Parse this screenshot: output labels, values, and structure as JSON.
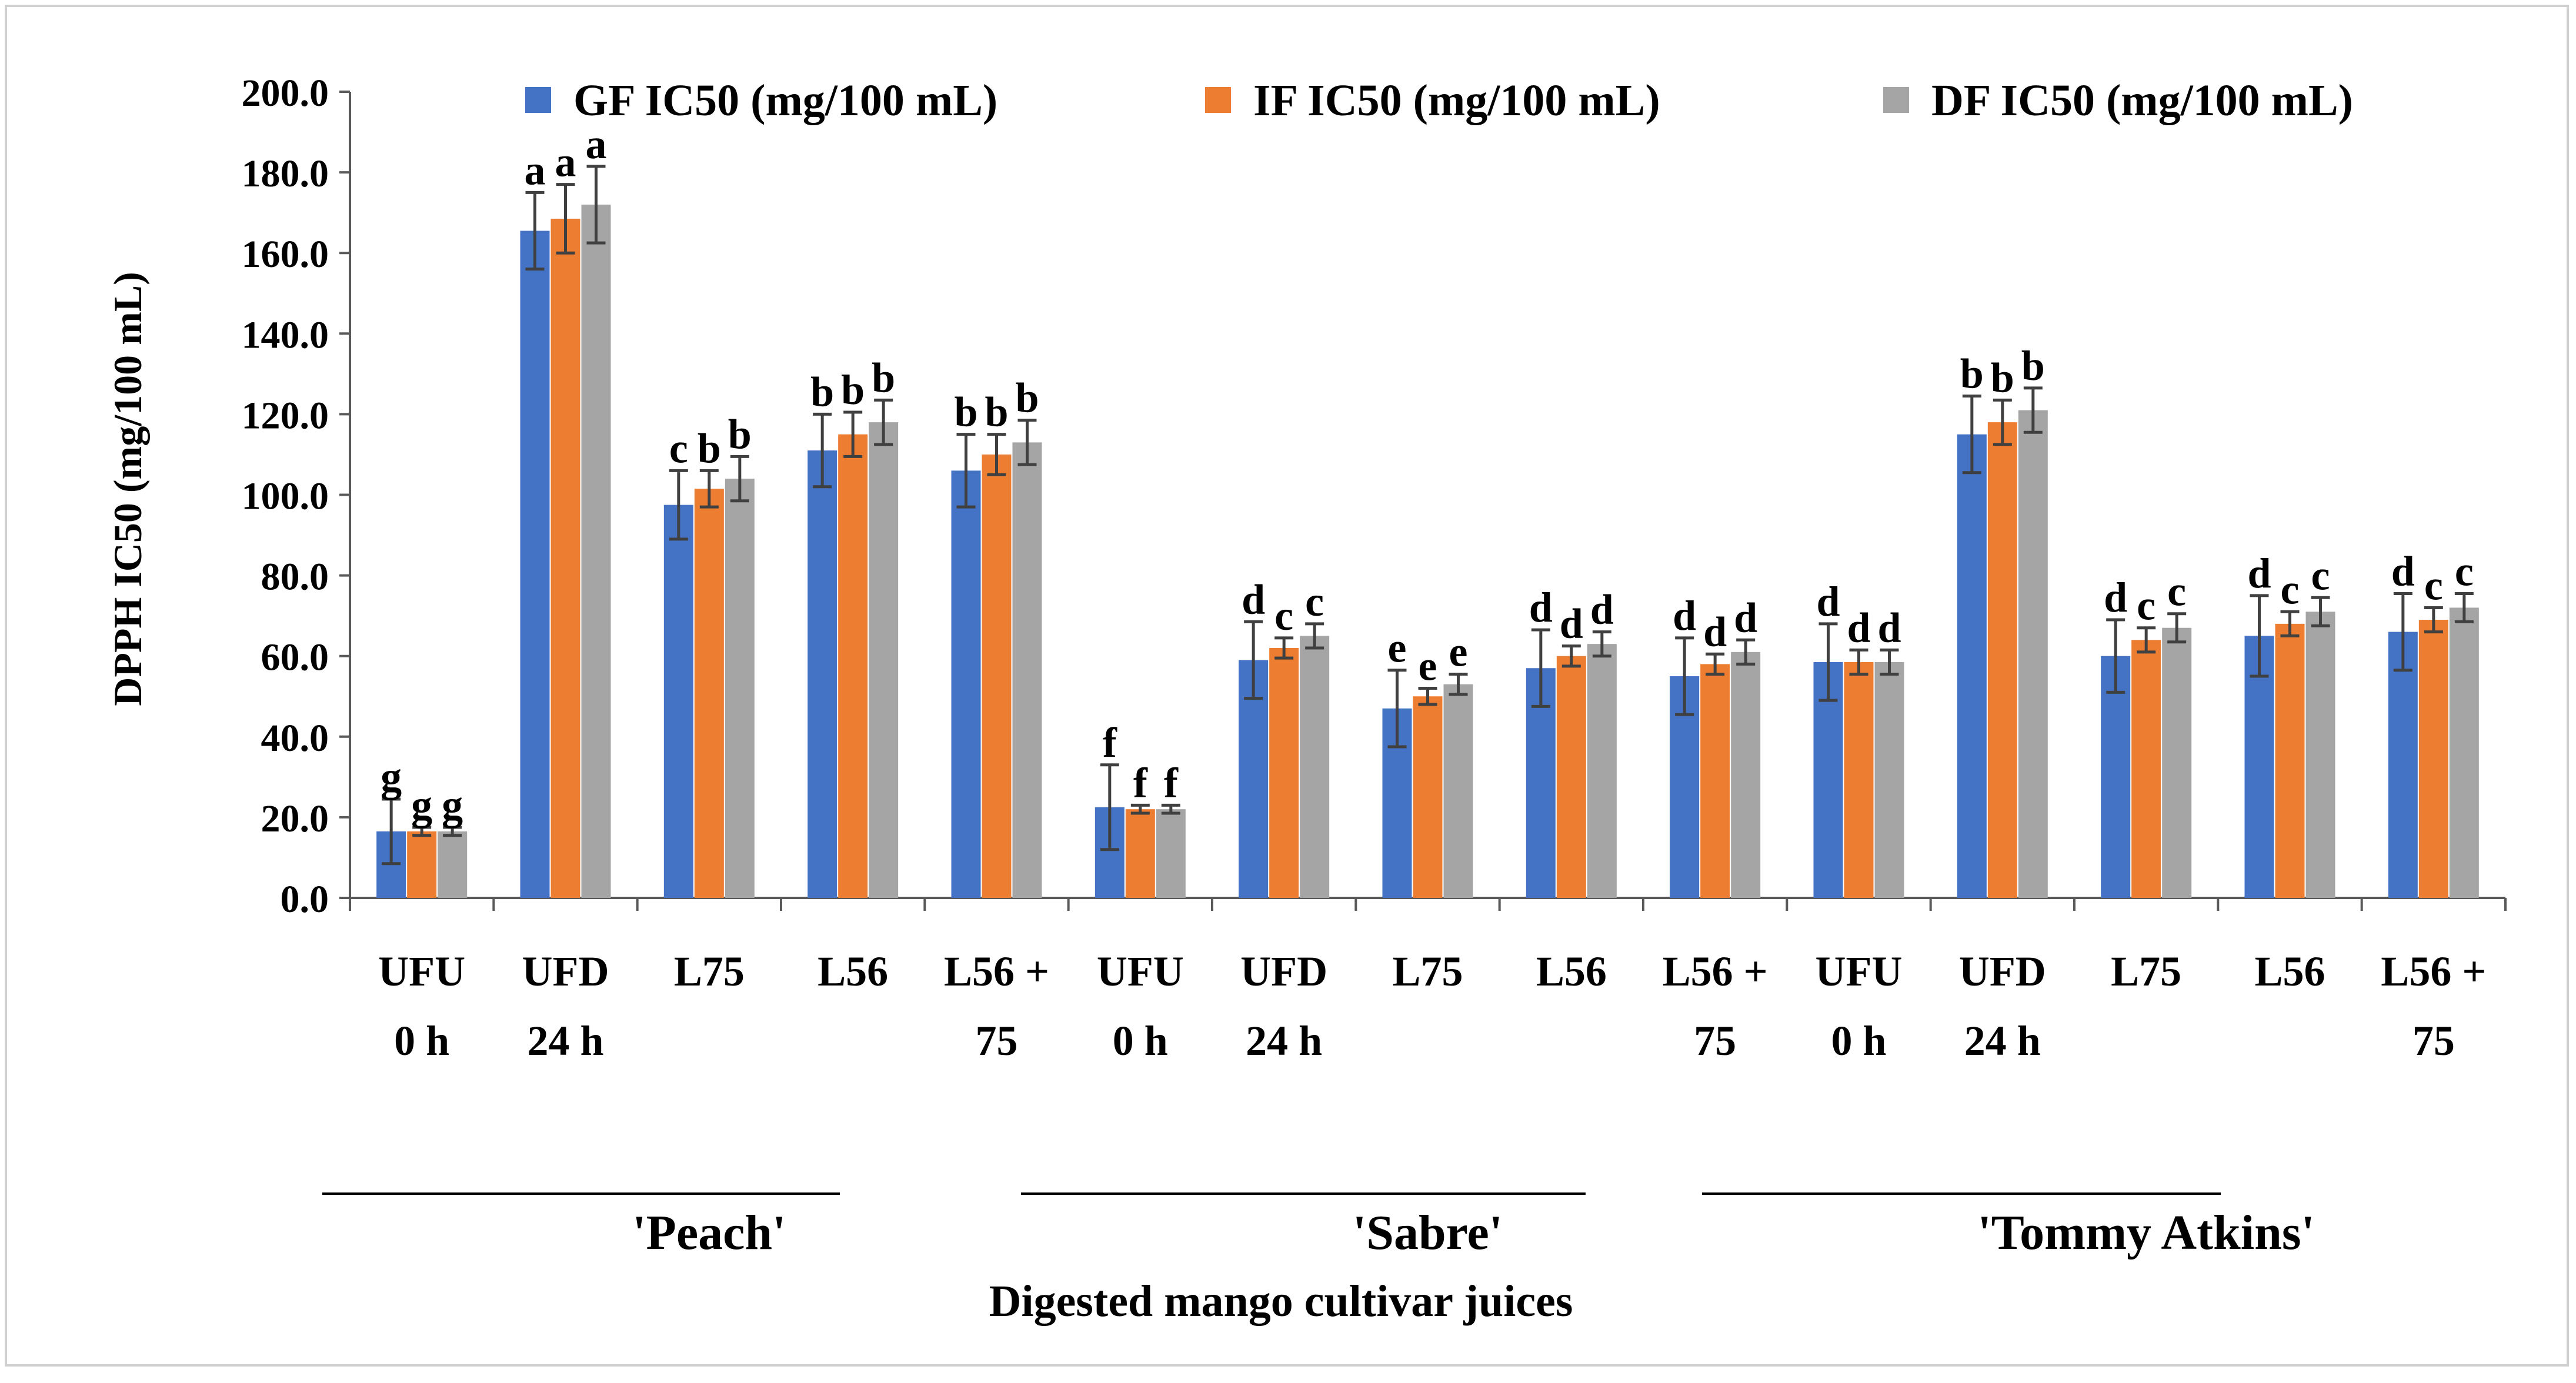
{
  "chart_data": {
    "type": "bar",
    "ylabel": "DPPH IC50 (mg/100 mL)",
    "xlabel": "Digested mango cultivar juices",
    "ylim": [
      0,
      200
    ],
    "yticks": [
      "0.0",
      "20.0",
      "40.0",
      "60.0",
      "80.0",
      "100.0",
      "120.0",
      "140.0",
      "160.0",
      "180.0",
      "200.0"
    ],
    "grid": false,
    "legend_position": "top",
    "categories": [
      [
        "UFU",
        "0 h"
      ],
      [
        "UFD",
        "24 h"
      ],
      [
        "L75"
      ],
      [
        "L56"
      ],
      [
        "L56 +",
        "75"
      ],
      [
        "UFU",
        "0 h"
      ],
      [
        "UFD",
        "24 h"
      ],
      [
        "L75"
      ],
      [
        "L56"
      ],
      [
        "L56 +",
        "75"
      ],
      [
        "UFU",
        "0 h"
      ],
      [
        "UFD",
        "24 h"
      ],
      [
        "L75"
      ],
      [
        "L56"
      ],
      [
        "L56 +",
        "75"
      ]
    ],
    "groups": [
      {
        "label": "'Peach'",
        "start": 0,
        "end": 4
      },
      {
        "label": "'Sabre'",
        "start": 5,
        "end": 9
      },
      {
        "label": "'Tommy Atkins'",
        "start": 10,
        "end": 14
      }
    ],
    "series": [
      {
        "name": "GF IC50 (mg/100 mL)",
        "color": "#4472C4",
        "values": [
          16.5,
          165.5,
          97.5,
          111.0,
          106.0,
          22.5,
          59.0,
          47.0,
          57.0,
          55.0,
          58.5,
          115.0,
          60.0,
          65.0,
          66.0
        ],
        "errors": [
          8.0,
          9.5,
          8.5,
          9.0,
          9.0,
          10.5,
          9.5,
          9.5,
          9.5,
          9.5,
          9.5,
          9.5,
          9.0,
          10.0,
          9.5
        ],
        "letters": [
          "g",
          "a",
          "c",
          "b",
          "b",
          "f",
          "d",
          "e",
          "d",
          "d",
          "d",
          "b",
          "d",
          "d",
          "d"
        ]
      },
      {
        "name": "IF IC50 (mg/100 mL)",
        "color": "#ED7D31",
        "values": [
          16.5,
          168.5,
          101.5,
          115.0,
          110.0,
          22.0,
          62.0,
          50.0,
          60.0,
          58.0,
          58.5,
          118.0,
          64.0,
          68.0,
          69.0
        ],
        "errors": [
          1.0,
          8.5,
          4.5,
          5.5,
          5.0,
          1.0,
          2.5,
          2.0,
          2.5,
          2.5,
          3.0,
          5.5,
          3.0,
          3.0,
          3.0
        ],
        "letters": [
          "g",
          "a",
          "b",
          "b",
          "b",
          "f",
          "c",
          "e",
          "d",
          "d",
          "d",
          "b",
          "c",
          "c",
          "c"
        ]
      },
      {
        "name": "DF IC50 (mg/100 mL)",
        "color": "#A5A5A5",
        "values": [
          16.5,
          172.0,
          104.0,
          118.0,
          113.0,
          22.0,
          65.0,
          53.0,
          63.0,
          61.0,
          58.5,
          121.0,
          67.0,
          71.0,
          72.0
        ],
        "errors": [
          1.0,
          9.5,
          5.5,
          5.5,
          5.5,
          1.0,
          3.0,
          2.5,
          3.0,
          3.0,
          3.0,
          5.5,
          3.5,
          3.5,
          3.5
        ],
        "letters": [
          "g",
          "a",
          "b",
          "b",
          "b",
          "f",
          "c",
          "e",
          "d",
          "d",
          "d",
          "b",
          "c",
          "c",
          "c"
        ]
      }
    ]
  },
  "colors": {
    "axis": "#595959",
    "error_bar": "#404040",
    "text": "#000000"
  }
}
